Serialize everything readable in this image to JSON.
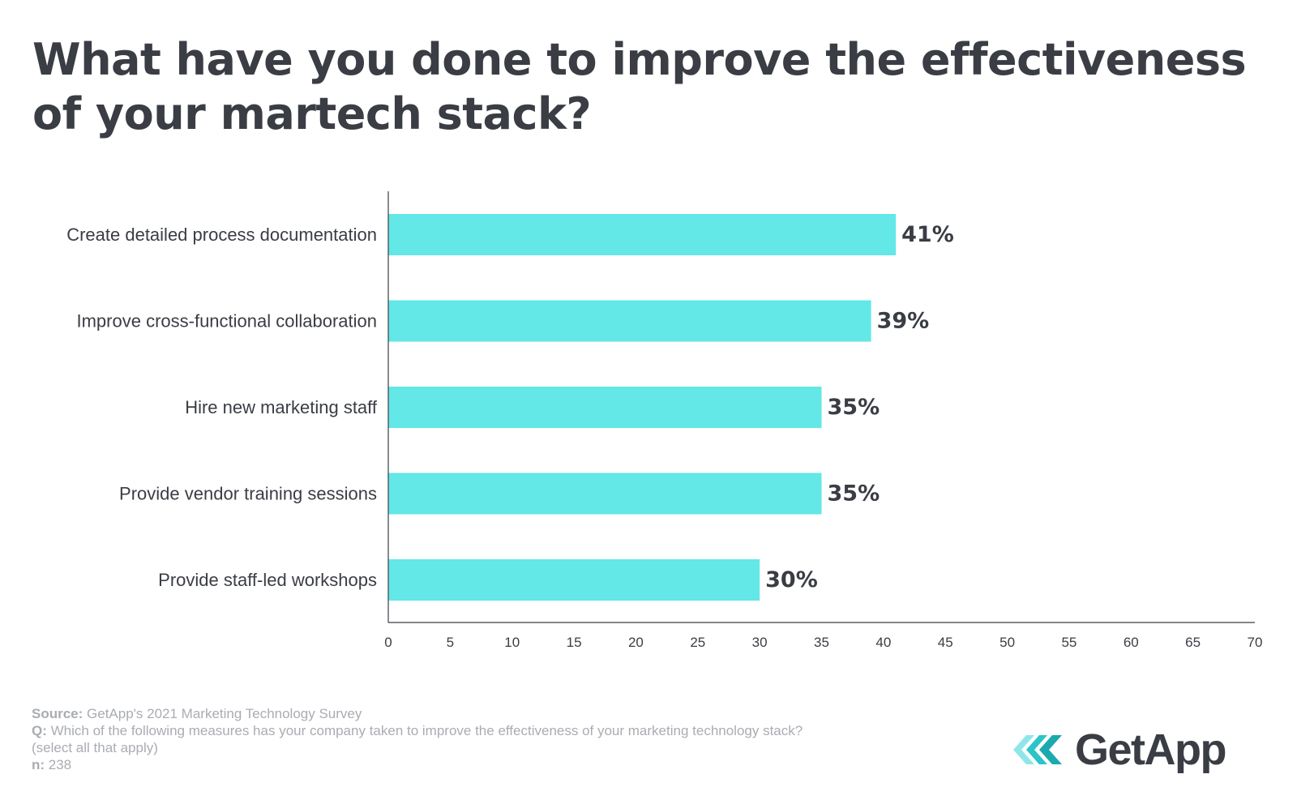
{
  "title": "What have you done to improve the effectiveness of your martech stack?",
  "colors": {
    "bar": "#63e7e7",
    "text_dark": "#3a3d44",
    "text_muted": "#a9acb2",
    "brand_teal": "#2bc4c8"
  },
  "chart_data": {
    "type": "bar",
    "orientation": "horizontal",
    "title": "What have you done to improve the effectiveness of your martech stack?",
    "categories": [
      "Create detailed process documentation",
      "Improve cross-functional collaboration",
      "Hire new marketing staff",
      "Provide vendor training sessions",
      "Provide staff-led workshops"
    ],
    "values": [
      41,
      39,
      35,
      35,
      30
    ],
    "value_labels": [
      "41%",
      "39%",
      "35%",
      "35%",
      "30%"
    ],
    "xlabel": "",
    "ylabel": "",
    "xlim": [
      0,
      70
    ],
    "xticks": [
      0,
      5,
      10,
      15,
      20,
      25,
      30,
      35,
      40,
      45,
      50,
      55,
      60,
      65,
      70
    ],
    "grid": false,
    "legend": "none"
  },
  "footer": {
    "source_label": "Source:",
    "source_text": " GetApp's 2021 Marketing Technology Survey",
    "q_label": "Q:",
    "q_text": " Which of the following measures has your company taken to improve the effectiveness of your marketing technology stack?",
    "q_note": "(select all that apply)",
    "n_label": "n:",
    "n_text": " 238"
  },
  "logo": {
    "text": "GetApp",
    "icon": "getapp-chevrons-icon"
  }
}
